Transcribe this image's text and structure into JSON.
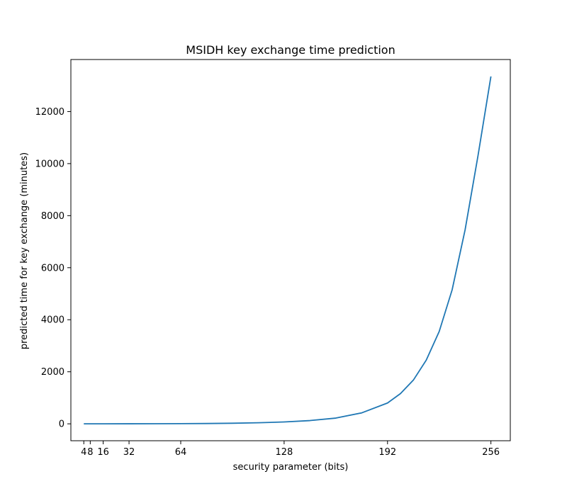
{
  "chart_data": {
    "type": "line",
    "title": "MSIDH key exchange time prediction",
    "xlabel": "security parameter (bits)",
    "ylabel": "predicted time for key exchange (minutes)",
    "xlim": [
      -4,
      268
    ],
    "ylim": [
      -650,
      14000
    ],
    "xticks": [
      4,
      8,
      16,
      32,
      64,
      128,
      192,
      256
    ],
    "xtick_labels": [
      "4",
      "8",
      "16",
      "32",
      "64",
      "128",
      "192",
      "256"
    ],
    "yticks": [
      0,
      2000,
      4000,
      6000,
      8000,
      10000,
      12000
    ],
    "ytick_labels": [
      "0",
      "2000",
      "4000",
      "6000",
      "8000",
      "10000",
      "12000"
    ],
    "grid": false,
    "color": "#1f77b4",
    "series": [
      {
        "x": [
          4,
          16,
          32,
          48,
          64,
          80,
          96,
          112,
          128,
          144,
          160,
          176,
          192,
          200,
          208,
          216,
          224,
          232,
          240,
          248,
          256
        ],
        "values": [
          0,
          1,
          2,
          3,
          6,
          12,
          22,
          40,
          72,
          125,
          220,
          420,
          800,
          1160,
          1680,
          2450,
          3550,
          5150,
          7450,
          10300,
          13350
        ]
      }
    ]
  }
}
